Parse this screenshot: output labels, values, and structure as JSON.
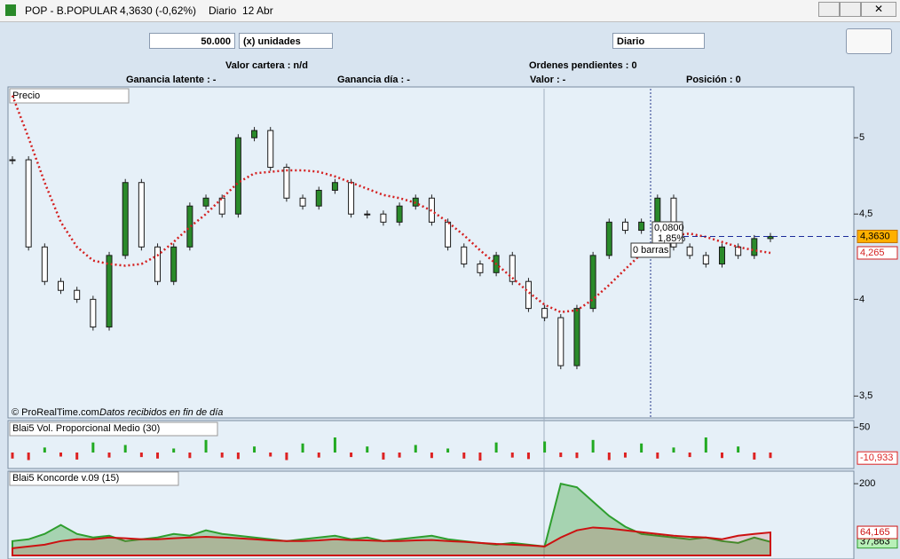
{
  "window": {
    "title": "POP - B.POPULAR",
    "quote": "4,3630 (-0,62%)",
    "period": "Diario",
    "date": "12 Abr"
  },
  "toolbar": {
    "quantity": "50.000",
    "unit": "(x) unidades",
    "timeframe": "Diario"
  },
  "info": {
    "portfolio": "Valor cartera : n/d",
    "pending": "Ordenes pendientes : 0",
    "latent": "Ganancia latente : -",
    "day_gain": "Ganancia día : -",
    "value": "Valor : -",
    "position": "Posición : 0"
  },
  "chart_data": [
    {
      "type": "candlestick",
      "title": "Precio",
      "source": "© ProRealTime.com",
      "note": "Datos recibidos en fin de día",
      "log": true,
      "ylim": [
        3.4,
        5.35
      ],
      "yticks": [
        {
          "value": 3.5,
          "label": "3,5"
        },
        4,
        {
          "value": 4.5,
          "label": "4,5"
        },
        5
      ],
      "color_up": "#2a8a2a",
      "color_down": "#1a1a1a",
      "values": [
        4.85,
        4.3,
        4.1,
        4.05,
        4.0,
        3.85,
        4.25,
        4.7,
        4.3,
        4.1,
        4.3,
        4.55,
        4.6,
        4.5,
        5.0,
        5.05,
        4.8,
        4.6,
        4.55,
        4.65,
        4.7,
        4.5,
        4.5,
        4.45,
        4.55,
        4.6,
        4.45,
        4.3,
        4.2,
        4.15,
        4.25,
        4.1,
        3.95,
        3.9,
        3.65,
        3.95,
        4.25,
        4.45,
        4.4,
        4.45,
        4.6,
        4.3,
        4.25,
        4.2,
        4.3,
        4.25,
        4.35,
        4.363
      ],
      "moving_average": {
        "color": "#d42020",
        "values": [
          5.3,
          5.0,
          4.7,
          4.45,
          4.3,
          4.22,
          4.2,
          4.19,
          4.2,
          4.25,
          4.33,
          4.42,
          4.5,
          4.6,
          4.7,
          4.76,
          4.77,
          4.78,
          4.78,
          4.77,
          4.74,
          4.7,
          4.66,
          4.62,
          4.6,
          4.57,
          4.52,
          4.45,
          4.37,
          4.28,
          4.2,
          4.12,
          4.04,
          3.97,
          3.93,
          3.94,
          4.0,
          4.08,
          4.17,
          4.26,
          4.33,
          4.37,
          4.38,
          4.36,
          4.33,
          4.3,
          4.28,
          4.265
        ]
      },
      "last_price": {
        "value": 4.363,
        "label": "4,3630"
      },
      "ma_last": {
        "value": 4.265,
        "label": "4,265"
      },
      "tooltip": {
        "change": {
          "value": 0.08,
          "label": "0,0800"
        },
        "change_pct": {
          "value": 1.85,
          "label": "1,85%"
        },
        "bars": "0 barras"
      }
    },
    {
      "type": "bar",
      "title": "Blai5 Vol. Proporcional Medio (30)",
      "ylim": [
        -30,
        60
      ],
      "yticks": [
        50
      ],
      "color_up": "#22aa22",
      "color_down": "#dd2222",
      "values": [
        -12,
        -15,
        10,
        -8,
        -14,
        20,
        -10,
        15,
        -9,
        -12,
        8,
        -11,
        25,
        -10,
        -13,
        12,
        -8,
        -15,
        18,
        -10,
        30,
        -9,
        12,
        -14,
        -10,
        15,
        -11,
        8,
        -12,
        -16,
        20,
        -10,
        -13,
        22,
        -9,
        -11,
        25,
        -15,
        -10,
        18,
        -12,
        10,
        -9,
        30,
        -11,
        12,
        -14,
        -10.933
      ],
      "last": {
        "value": -10.933,
        "label": "-10,933"
      }
    },
    {
      "type": "area",
      "title": "Blai5 Koncorde v.09 (15)",
      "ylim": [
        -5,
        230
      ],
      "yticks": [
        200
      ],
      "series": [
        {
          "color": "#2e9e2e",
          "values": [
            40,
            45,
            60,
            85,
            60,
            50,
            55,
            40,
            45,
            50,
            60,
            55,
            70,
            60,
            55,
            50,
            45,
            40,
            45,
            50,
            55,
            45,
            50,
            40,
            45,
            50,
            55,
            45,
            40,
            35,
            30,
            35,
            30,
            25,
            200,
            190,
            150,
            110,
            80,
            60,
            55,
            50,
            45,
            50,
            40,
            35,
            50,
            37.863
          ],
          "last": {
            "value": 37.863,
            "label": "37,863"
          }
        },
        {
          "color": "#cc1111",
          "values": [
            20,
            25,
            30,
            40,
            45,
            45,
            50,
            48,
            45,
            45,
            48,
            50,
            52,
            50,
            48,
            45,
            42,
            40,
            40,
            42,
            45,
            43,
            42,
            40,
            40,
            42,
            43,
            40,
            38,
            35,
            32,
            30,
            28,
            25,
            50,
            70,
            78,
            75,
            70,
            65,
            60,
            55,
            52,
            50,
            45,
            55,
            60,
            64.165
          ],
          "last": {
            "value": 64.165,
            "label": "64,165"
          }
        }
      ]
    }
  ]
}
